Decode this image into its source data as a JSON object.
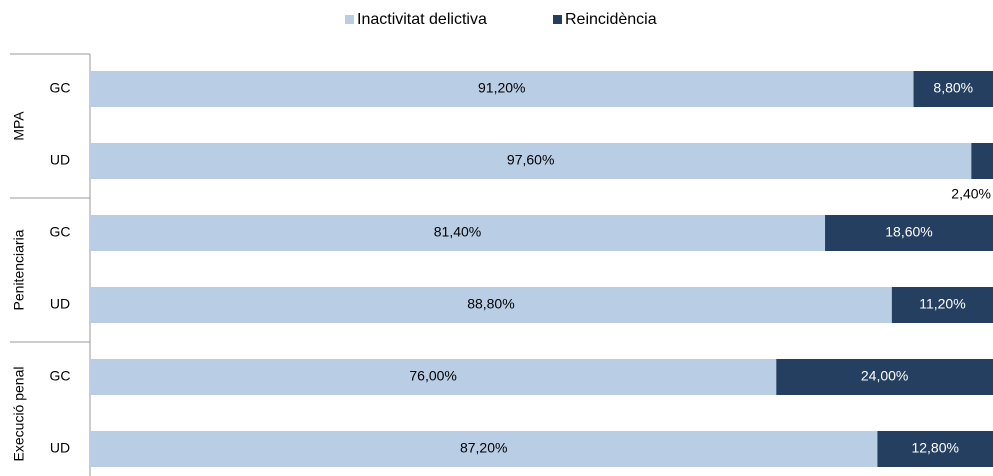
{
  "chart_data": {
    "type": "stacked-bar-horizontal",
    "groups": [
      {
        "name": "MPA",
        "categories": [
          "GC",
          "UD"
        ]
      },
      {
        "name": "Penitenciaria",
        "categories": [
          "GC",
          "UD"
        ]
      },
      {
        "name": "Execució penal",
        "categories": [
          "GC",
          "UD"
        ]
      }
    ],
    "xlim": [
      0,
      100
    ],
    "legend": "top",
    "series": [
      {
        "name": "Inactivitat delictiva",
        "color": "#b9cde5",
        "values": [
          91.2,
          97.6,
          81.4,
          88.8,
          76.0,
          87.2
        ],
        "value_labels": [
          "91,20%",
          "97,60%",
          "81,40%",
          "88,80%",
          "76,00%",
          "87,20%"
        ]
      },
      {
        "name": "Reincidència",
        "color": "#243f60",
        "values": [
          8.8,
          2.4,
          18.6,
          11.2,
          24.0,
          12.8
        ],
        "value_labels": [
          "8,80%",
          "2,40%",
          "18,60%",
          "11,20%",
          "24,00%",
          "12,80%"
        ]
      }
    ]
  }
}
